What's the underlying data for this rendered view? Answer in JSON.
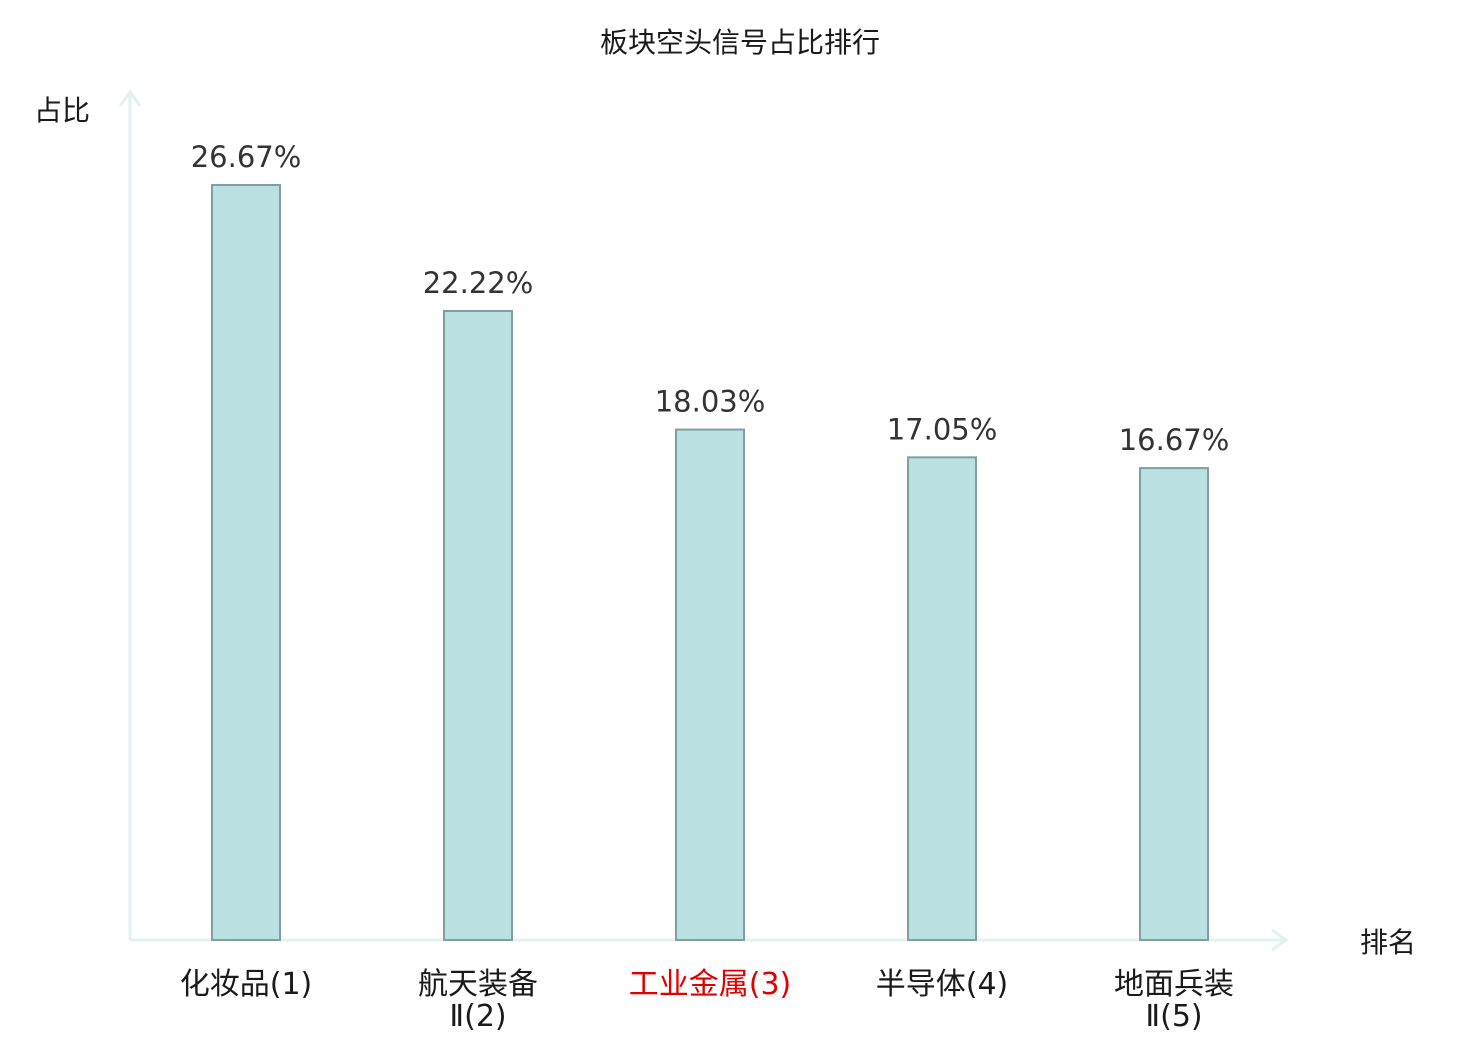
{
  "chart_data": {
    "type": "bar",
    "title": "板块空头信号占比排行",
    "ylabel": "占比",
    "xlabel": "排名",
    "categories": [
      [
        "化妆品(1)"
      ],
      [
        "航天装备",
        "Ⅱ(2)"
      ],
      [
        "工业金属(3)"
      ],
      [
        "半导体(4)"
      ],
      [
        "地面兵装",
        "Ⅱ(5)"
      ]
    ],
    "values": [
      26.67,
      22.22,
      18.03,
      17.05,
      16.67
    ],
    "value_labels": [
      "26.67%",
      "22.22%",
      "18.03%",
      "17.05%",
      "16.67%"
    ],
    "highlight_index": 2,
    "ylim": [
      0,
      30
    ],
    "grid": false,
    "legend": "none"
  },
  "colors": {
    "bar_fill": "#bbe0e1",
    "bar_stroke": "#7f9fa0",
    "axis": "#e0f3f1",
    "highlight_text": "#e00000",
    "text": "#1a1a1a"
  }
}
